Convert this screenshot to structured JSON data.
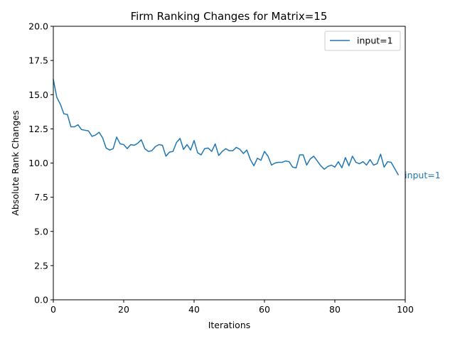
{
  "chart_data": {
    "type": "line",
    "title": "Firm Ranking Changes for Matrix=15",
    "xlabel": "Iterations",
    "ylabel": "Absolute Rank Changes",
    "xlim": [
      0,
      100
    ],
    "ylim": [
      0,
      20
    ],
    "xticks": [
      0,
      20,
      40,
      60,
      80,
      100
    ],
    "xtick_labels": [
      "0",
      "20",
      "40",
      "60",
      "80",
      "100"
    ],
    "yticks": [
      0,
      2.5,
      5,
      7.5,
      10,
      12.5,
      15,
      17.5,
      20
    ],
    "ytick_labels": [
      "0.0",
      "2.5",
      "5.0",
      "7.5",
      "10.0",
      "12.5",
      "15.0",
      "17.5",
      "20.0"
    ],
    "grid": false,
    "legend_position": "top-right",
    "series": [
      {
        "name": "input=1",
        "color": "#1f77b4",
        "end_label": "input=1",
        "x": [
          0,
          1,
          2,
          3,
          4,
          5,
          6,
          7,
          8,
          9,
          10,
          11,
          12,
          13,
          14,
          15,
          16,
          17,
          18,
          19,
          20,
          21,
          22,
          23,
          24,
          25,
          26,
          27,
          28,
          29,
          30,
          31,
          32,
          33,
          34,
          35,
          36,
          37,
          38,
          39,
          40,
          41,
          42,
          43,
          44,
          45,
          46,
          47,
          48,
          49,
          50,
          51,
          52,
          53,
          54,
          55,
          56,
          57,
          58,
          59,
          60,
          61,
          62,
          63,
          64,
          65,
          66,
          67,
          68,
          69,
          70,
          71,
          72,
          73,
          74,
          75,
          76,
          77,
          78,
          79,
          80,
          81,
          82,
          83,
          84,
          85,
          86,
          87,
          88,
          89,
          90,
          91,
          92,
          93,
          94,
          95,
          96,
          97,
          98
        ],
        "y": [
          16.1,
          14.8,
          14.3,
          13.6,
          13.55,
          12.65,
          12.65,
          12.8,
          12.45,
          12.4,
          12.35,
          11.95,
          12.05,
          12.25,
          11.85,
          11.1,
          10.95,
          11.05,
          11.9,
          11.4,
          11.35,
          11.05,
          11.35,
          11.3,
          11.45,
          11.7,
          11.05,
          10.85,
          10.9,
          11.2,
          11.35,
          11.3,
          10.5,
          10.8,
          10.85,
          11.5,
          11.8,
          11.0,
          11.35,
          10.95,
          11.65,
          10.75,
          10.6,
          11.05,
          11.1,
          10.85,
          11.4,
          10.55,
          10.85,
          11.05,
          10.9,
          10.9,
          11.15,
          11.0,
          10.7,
          10.95,
          10.25,
          9.8,
          10.35,
          10.2,
          10.85,
          10.5,
          9.85,
          10.0,
          10.05,
          10.05,
          10.15,
          10.1,
          9.7,
          9.65,
          10.6,
          10.6,
          9.85,
          10.3,
          10.5,
          10.15,
          9.8,
          9.55,
          9.75,
          9.85,
          9.7,
          10.1,
          9.65,
          10.4,
          9.8,
          10.5,
          10.05,
          9.95,
          10.1,
          9.85,
          10.25,
          9.85,
          9.95,
          10.65,
          9.7,
          10.1,
          10.05,
          9.6,
          9.15
        ]
      }
    ]
  }
}
